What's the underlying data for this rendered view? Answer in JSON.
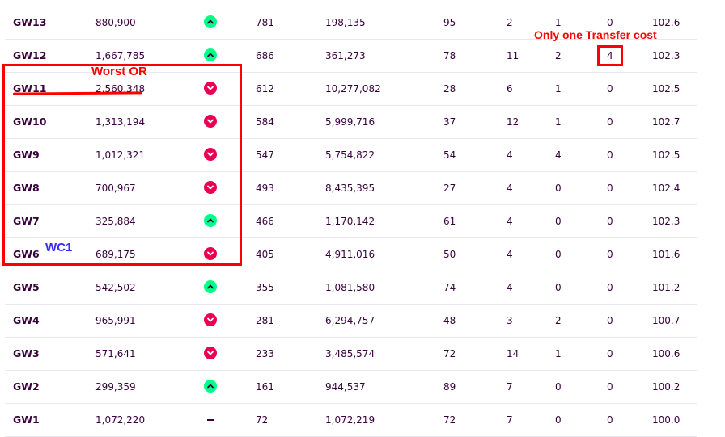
{
  "colors": {
    "up": "#00ff87",
    "down": "#e90052",
    "text": "#37003c",
    "annotation_red": "#ff0000",
    "annotation_blue": "#3b2bff"
  },
  "rows": [
    {
      "gw": "GW13",
      "overall_rank": "880,900",
      "movement": "up",
      "points": "781",
      "gw_rank": "198,135",
      "bench": "95",
      "transfers_made": "2",
      "transfers_cost": "1",
      "hits": "0",
      "value": "102.6"
    },
    {
      "gw": "GW12",
      "overall_rank": "1,667,785",
      "movement": "up",
      "points": "686",
      "gw_rank": "361,273",
      "bench": "78",
      "transfers_made": "11",
      "transfers_cost": "2",
      "hits": "4",
      "value": "102.3"
    },
    {
      "gw": "GW11",
      "overall_rank": "2,560,348",
      "movement": "down",
      "points": "612",
      "gw_rank": "10,277,082",
      "bench": "28",
      "transfers_made": "6",
      "transfers_cost": "1",
      "hits": "0",
      "value": "102.5"
    },
    {
      "gw": "GW10",
      "overall_rank": "1,313,194",
      "movement": "down",
      "points": "584",
      "gw_rank": "5,999,716",
      "bench": "37",
      "transfers_made": "12",
      "transfers_cost": "1",
      "hits": "0",
      "value": "102.7"
    },
    {
      "gw": "GW9",
      "overall_rank": "1,012,321",
      "movement": "down",
      "points": "547",
      "gw_rank": "5,754,822",
      "bench": "54",
      "transfers_made": "4",
      "transfers_cost": "4",
      "hits": "0",
      "value": "102.5"
    },
    {
      "gw": "GW8",
      "overall_rank": "700,967",
      "movement": "down",
      "points": "493",
      "gw_rank": "8,435,395",
      "bench": "27",
      "transfers_made": "4",
      "transfers_cost": "0",
      "hits": "0",
      "value": "102.4"
    },
    {
      "gw": "GW7",
      "overall_rank": "325,884",
      "movement": "up",
      "points": "466",
      "gw_rank": "1,170,142",
      "bench": "61",
      "transfers_made": "4",
      "transfers_cost": "0",
      "hits": "0",
      "value": "102.3"
    },
    {
      "gw": "GW6",
      "overall_rank": "689,175",
      "movement": "down",
      "points": "405",
      "gw_rank": "4,911,016",
      "bench": "50",
      "transfers_made": "4",
      "transfers_cost": "0",
      "hits": "0",
      "value": "101.6"
    },
    {
      "gw": "GW5",
      "overall_rank": "542,502",
      "movement": "up",
      "points": "355",
      "gw_rank": "1,081,580",
      "bench": "74",
      "transfers_made": "4",
      "transfers_cost": "0",
      "hits": "0",
      "value": "101.2"
    },
    {
      "gw": "GW4",
      "overall_rank": "965,991",
      "movement": "down",
      "points": "281",
      "gw_rank": "6,294,757",
      "bench": "48",
      "transfers_made": "3",
      "transfers_cost": "2",
      "hits": "0",
      "value": "100.7"
    },
    {
      "gw": "GW3",
      "overall_rank": "571,641",
      "movement": "down",
      "points": "233",
      "gw_rank": "3,485,574",
      "bench": "72",
      "transfers_made": "14",
      "transfers_cost": "1",
      "hits": "0",
      "value": "100.6"
    },
    {
      "gw": "GW2",
      "overall_rank": "299,359",
      "movement": "up",
      "points": "161",
      "gw_rank": "944,537",
      "bench": "89",
      "transfers_made": "7",
      "transfers_cost": "0",
      "hits": "0",
      "value": "100.2"
    },
    {
      "gw": "GW1",
      "overall_rank": "1,072,220",
      "movement": "none",
      "points": "72",
      "gw_rank": "1,072,219",
      "bench": "72",
      "transfers_made": "7",
      "transfers_cost": "0",
      "hits": "0",
      "value": "100.0"
    }
  ],
  "annotations": {
    "worst_or": "Worst OR",
    "wc1": "WC1",
    "transfer_cost": "Only one Transfer cost"
  }
}
